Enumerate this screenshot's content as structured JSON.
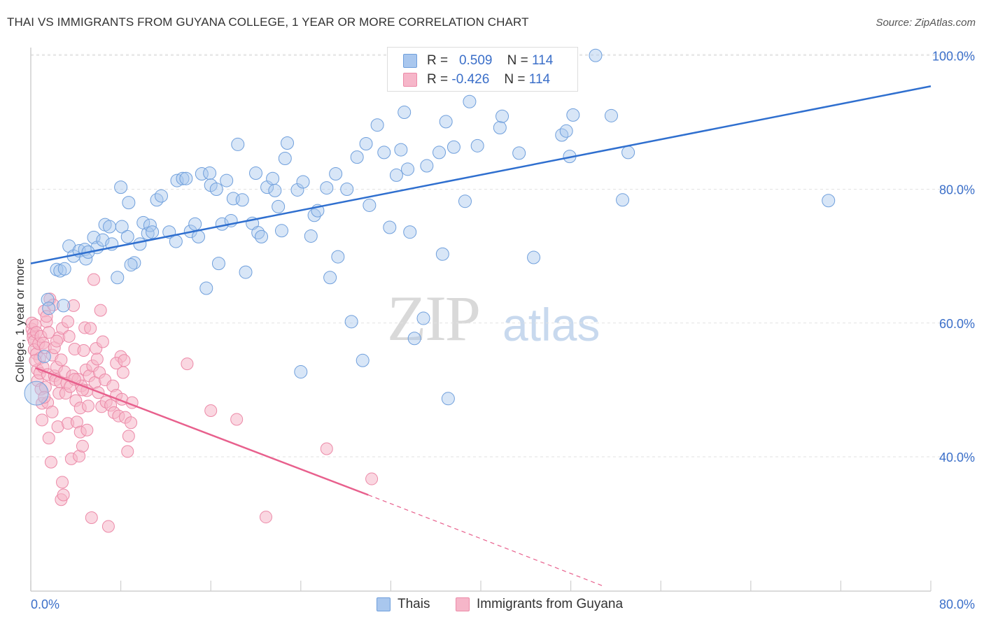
{
  "header": {
    "title": "THAI VS IMMIGRANTS FROM GUYANA COLLEGE, 1 YEAR OR MORE CORRELATION CHART",
    "source": "Source: ZipAtlas.com"
  },
  "legend": {
    "rows": [
      {
        "r_label": "R =",
        "r_value": "0.509",
        "n_label": "N =",
        "n_value": "114"
      },
      {
        "r_label": "R =",
        "r_value": "-0.426",
        "n_label": "N =",
        "n_value": "114"
      }
    ],
    "bottom": [
      "Thais",
      "Immigrants from Guyana"
    ]
  },
  "watermark": {
    "zip": "ZIP",
    "atlas": "atlas"
  },
  "colors": {
    "thais": "#a9c7ee",
    "thais_edge": "#6f9fdc",
    "thais_line": "#2f6fcf",
    "guyana": "#f6b6c9",
    "guyana_edge": "#ec8aa8",
    "guyana_line": "#e8608d",
    "tick_text": "#3b6fc9",
    "grid": "#e2e2e2"
  },
  "chart_data": {
    "type": "scatter",
    "title": "THAI VS IMMIGRANTS FROM GUYANA COLLEGE, 1 YEAR OR MORE CORRELATION CHART",
    "xlabel": "",
    "ylabel": "College, 1 year or more",
    "xlim": [
      0,
      80
    ],
    "ylim": [
      20,
      102
    ],
    "x_tick_labels": [
      "0.0%",
      "80.0%"
    ],
    "y_ticks": [
      40,
      60,
      80,
      100
    ],
    "y_tick_labels": [
      "40.0%",
      "60.0%",
      "80.0%",
      "100.0%"
    ],
    "grid": true,
    "legend_position": "top-center",
    "series": [
      {
        "name": "Thais",
        "r": 0.509,
        "n": 114,
        "trend": {
          "x": [
            0,
            80
          ],
          "y": [
            68.9,
            95.4
          ]
        },
        "points": [
          [
            0.5,
            49.5
          ],
          [
            1.2,
            55.0
          ],
          [
            1.5,
            63.5
          ],
          [
            1.6,
            62.2
          ],
          [
            2.3,
            68.0
          ],
          [
            2.6,
            67.8
          ],
          [
            3.4,
            71.5
          ],
          [
            3.8,
            70.0
          ],
          [
            4.3,
            70.8
          ],
          [
            4.8,
            71.0
          ],
          [
            4.9,
            69.6
          ],
          [
            5.6,
            72.8
          ],
          [
            5.9,
            71.3
          ],
          [
            6.4,
            72.4
          ],
          [
            6.6,
            74.7
          ],
          [
            7.2,
            71.8
          ],
          [
            7.7,
            66.8
          ],
          [
            8.0,
            80.3
          ],
          [
            8.1,
            74.4
          ],
          [
            8.6,
            72.9
          ],
          [
            8.7,
            78.0
          ],
          [
            9.2,
            69.0
          ],
          [
            9.7,
            71.8
          ],
          [
            10.0,
            75.0
          ],
          [
            10.4,
            73.4
          ],
          [
            10.6,
            74.6
          ],
          [
            11.2,
            78.4
          ],
          [
            11.6,
            79.0
          ],
          [
            12.3,
            73.6
          ],
          [
            12.9,
            72.2
          ],
          [
            13.0,
            81.3
          ],
          [
            13.5,
            81.6
          ],
          [
            13.8,
            81.6
          ],
          [
            14.2,
            73.7
          ],
          [
            14.6,
            74.8
          ],
          [
            14.9,
            72.9
          ],
          [
            15.2,
            82.3
          ],
          [
            15.6,
            65.2
          ],
          [
            15.9,
            82.4
          ],
          [
            16.0,
            80.6
          ],
          [
            16.5,
            80.0
          ],
          [
            16.7,
            68.9
          ],
          [
            17.0,
            74.8
          ],
          [
            17.4,
            81.3
          ],
          [
            17.8,
            75.3
          ],
          [
            18.0,
            78.6
          ],
          [
            18.4,
            86.7
          ],
          [
            18.8,
            78.4
          ],
          [
            19.1,
            67.6
          ],
          [
            19.7,
            74.9
          ],
          [
            20.0,
            82.4
          ],
          [
            20.2,
            73.5
          ],
          [
            20.5,
            72.9
          ],
          [
            21.0,
            80.3
          ],
          [
            21.5,
            81.6
          ],
          [
            21.7,
            79.8
          ],
          [
            22.0,
            77.4
          ],
          [
            22.3,
            73.8
          ],
          [
            22.6,
            84.6
          ],
          [
            22.8,
            86.9
          ],
          [
            23.7,
            79.9
          ],
          [
            24.2,
            81.1
          ],
          [
            24.9,
            73.0
          ],
          [
            25.2,
            76.1
          ],
          [
            25.5,
            76.8
          ],
          [
            26.3,
            80.2
          ],
          [
            26.6,
            66.8
          ],
          [
            27.1,
            82.3
          ],
          [
            27.3,
            69.9
          ],
          [
            28.1,
            80.0
          ],
          [
            29.0,
            84.8
          ],
          [
            29.5,
            54.4
          ],
          [
            29.8,
            86.8
          ],
          [
            30.1,
            77.6
          ],
          [
            30.8,
            89.6
          ],
          [
            31.4,
            85.5
          ],
          [
            31.9,
            74.3
          ],
          [
            32.5,
            82.1
          ],
          [
            32.9,
            85.9
          ],
          [
            33.2,
            91.5
          ],
          [
            33.5,
            83.0
          ],
          [
            33.7,
            73.6
          ],
          [
            34.1,
            57.7
          ],
          [
            34.9,
            60.7
          ],
          [
            35.2,
            83.5
          ],
          [
            36.3,
            85.5
          ],
          [
            36.6,
            70.3
          ],
          [
            36.9,
            90.1
          ],
          [
            37.1,
            48.7
          ],
          [
            37.6,
            86.3
          ],
          [
            38.6,
            78.2
          ],
          [
            39.0,
            93.1
          ],
          [
            39.7,
            86.5
          ],
          [
            41.7,
            89.2
          ],
          [
            43.4,
            85.4
          ],
          [
            44.7,
            69.8
          ],
          [
            47.2,
            88.1
          ],
          [
            47.6,
            88.7
          ],
          [
            47.9,
            84.9
          ],
          [
            48.2,
            91.1
          ],
          [
            50.2,
            100.0
          ],
          [
            51.6,
            91.0
          ],
          [
            52.6,
            78.4
          ],
          [
            53.1,
            85.5
          ],
          [
            70.9,
            78.3
          ],
          [
            2.9,
            62.6
          ],
          [
            10.8,
            73.6
          ],
          [
            7.0,
            74.4
          ],
          [
            5.1,
            70.6
          ],
          [
            41.9,
            90.9
          ],
          [
            3.0,
            68.1
          ],
          [
            28.5,
            60.2
          ],
          [
            8.9,
            68.7
          ],
          [
            24.0,
            52.7
          ]
        ]
      },
      {
        "name": "Immigrants from Guyana",
        "r": -0.426,
        "n": 114,
        "trend_solid": {
          "x": [
            0.4,
            30.0
          ],
          "y": [
            53.3,
            34.3
          ]
        },
        "trend_dashed": {
          "x": [
            30.0,
            51.0
          ],
          "y": [
            34.3,
            20.6
          ]
        },
        "points": [
          [
            0.1,
            59.1
          ],
          [
            0.1,
            60.0
          ],
          [
            0.2,
            58.4
          ],
          [
            0.2,
            57.8
          ],
          [
            0.3,
            57.3
          ],
          [
            0.3,
            56.0
          ],
          [
            0.4,
            59.7
          ],
          [
            0.5,
            55.4
          ],
          [
            0.5,
            58.6
          ],
          [
            0.6,
            53.0
          ],
          [
            0.6,
            51.4
          ],
          [
            0.7,
            56.9
          ],
          [
            0.8,
            54.7
          ],
          [
            0.8,
            52.5
          ],
          [
            0.9,
            58.0
          ],
          [
            0.9,
            50.1
          ],
          [
            1.0,
            48.0
          ],
          [
            1.0,
            45.5
          ],
          [
            1.1,
            57.0
          ],
          [
            1.1,
            53.4
          ],
          [
            1.2,
            61.8
          ],
          [
            1.3,
            56.3
          ],
          [
            1.3,
            50.4
          ],
          [
            1.4,
            60.2
          ],
          [
            1.5,
            52.3
          ],
          [
            1.5,
            48.1
          ],
          [
            1.6,
            58.6
          ],
          [
            1.6,
            42.8
          ],
          [
            1.7,
            63.6
          ],
          [
            1.8,
            39.2
          ],
          [
            1.9,
            55.2
          ],
          [
            1.9,
            46.7
          ],
          [
            2.0,
            62.7
          ],
          [
            2.1,
            52.1
          ],
          [
            2.1,
            56.3
          ],
          [
            2.2,
            51.5
          ],
          [
            2.3,
            53.4
          ],
          [
            2.4,
            44.5
          ],
          [
            2.5,
            49.5
          ],
          [
            2.5,
            57.8
          ],
          [
            2.6,
            51.2
          ],
          [
            2.7,
            54.5
          ],
          [
            2.7,
            33.6
          ],
          [
            2.8,
            59.2
          ],
          [
            2.8,
            36.2
          ],
          [
            2.9,
            34.3
          ],
          [
            3.0,
            52.7
          ],
          [
            3.1,
            49.5
          ],
          [
            3.2,
            51.0
          ],
          [
            3.3,
            45.0
          ],
          [
            3.3,
            60.2
          ],
          [
            3.4,
            58.0
          ],
          [
            3.5,
            50.5
          ],
          [
            3.6,
            39.7
          ],
          [
            3.7,
            52.1
          ],
          [
            3.8,
            62.6
          ],
          [
            3.9,
            56.1
          ],
          [
            4.0,
            48.4
          ],
          [
            4.1,
            45.2
          ],
          [
            4.2,
            51.6
          ],
          [
            4.3,
            40.1
          ],
          [
            4.4,
            47.3
          ],
          [
            4.4,
            43.7
          ],
          [
            4.5,
            50.6
          ],
          [
            4.6,
            41.6
          ],
          [
            4.7,
            55.9
          ],
          [
            4.8,
            59.3
          ],
          [
            4.9,
            53.0
          ],
          [
            5.0,
            44.0
          ],
          [
            5.0,
            49.9
          ],
          [
            5.1,
            47.6
          ],
          [
            5.2,
            52.1
          ],
          [
            5.3,
            59.2
          ],
          [
            5.4,
            30.9
          ],
          [
            5.5,
            53.6
          ],
          [
            5.6,
            66.5
          ],
          [
            5.7,
            51.1
          ],
          [
            5.8,
            56.2
          ],
          [
            5.9,
            54.6
          ],
          [
            6.0,
            49.6
          ],
          [
            6.1,
            52.6
          ],
          [
            6.3,
            47.5
          ],
          [
            6.4,
            57.2
          ],
          [
            6.6,
            51.5
          ],
          [
            6.7,
            48.2
          ],
          [
            6.9,
            29.6
          ],
          [
            7.1,
            47.7
          ],
          [
            7.3,
            50.6
          ],
          [
            7.4,
            46.6
          ],
          [
            7.6,
            49.2
          ],
          [
            7.8,
            46.1
          ],
          [
            8.0,
            55.0
          ],
          [
            8.1,
            48.6
          ],
          [
            8.2,
            52.6
          ],
          [
            8.4,
            45.9
          ],
          [
            8.6,
            40.8
          ],
          [
            8.7,
            43.1
          ],
          [
            8.9,
            45.1
          ],
          [
            9.0,
            48.1
          ],
          [
            13.9,
            53.9
          ],
          [
            16.0,
            46.9
          ],
          [
            18.3,
            45.6
          ],
          [
            20.9,
            31.0
          ],
          [
            26.3,
            41.2
          ],
          [
            30.3,
            36.7
          ],
          [
            6.2,
            61.9
          ],
          [
            2.3,
            57.3
          ],
          [
            1.2,
            48.9
          ],
          [
            3.9,
            51.6
          ],
          [
            4.6,
            50.0
          ],
          [
            0.4,
            54.4
          ],
          [
            7.6,
            54.0
          ],
          [
            8.3,
            54.4
          ],
          [
            1.4,
            61.0
          ]
        ]
      }
    ]
  }
}
